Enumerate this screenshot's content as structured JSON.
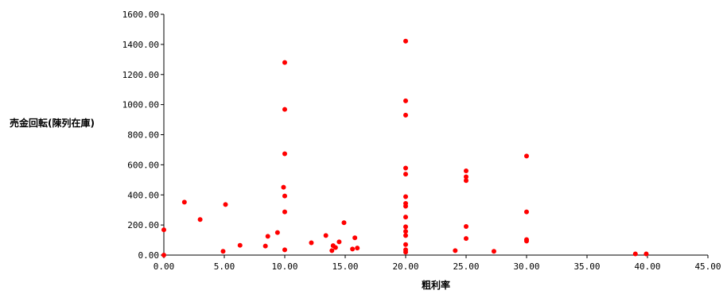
{
  "chart_data": {
    "type": "scatter",
    "title": "",
    "xlabel": "粗利率",
    "ylabel": "売金回転(陳列在庫)",
    "xlim": [
      0,
      45
    ],
    "ylim": [
      0,
      1600
    ],
    "x_ticks": [
      "0.00",
      "5.00",
      "10.00",
      "15.00",
      "20.00",
      "25.00",
      "30.00",
      "35.00",
      "40.00",
      "45.00"
    ],
    "y_ticks": [
      "0.00",
      "200.00",
      "400.00",
      "600.00",
      "800.00",
      "1000.00",
      "1200.00",
      "1400.00",
      "1600.00"
    ],
    "grid": false,
    "legend": "none",
    "marker_color": "#ff0000",
    "points": [
      [
        0,
        168
      ],
      [
        0,
        0
      ],
      [
        1.7,
        352
      ],
      [
        3.0,
        236
      ],
      [
        4.9,
        25
      ],
      [
        5.1,
        336
      ],
      [
        6.3,
        65
      ],
      [
        8.4,
        60
      ],
      [
        8.6,
        125
      ],
      [
        9.4,
        150
      ],
      [
        9.9,
        451
      ],
      [
        10.0,
        1280
      ],
      [
        10.0,
        968
      ],
      [
        10.0,
        673
      ],
      [
        10.0,
        393
      ],
      [
        10.0,
        287
      ],
      [
        10.0,
        35
      ],
      [
        12.2,
        82
      ],
      [
        13.4,
        130
      ],
      [
        13.9,
        30
      ],
      [
        14.0,
        63
      ],
      [
        14.2,
        50
      ],
      [
        14.5,
        88
      ],
      [
        14.9,
        215
      ],
      [
        15.6,
        40
      ],
      [
        15.8,
        115
      ],
      [
        16.0,
        47
      ],
      [
        20.0,
        1422
      ],
      [
        20.0,
        1025
      ],
      [
        20.0,
        930
      ],
      [
        20.0,
        578
      ],
      [
        20.0,
        538
      ],
      [
        20.0,
        388
      ],
      [
        20.0,
        343
      ],
      [
        20.0,
        325
      ],
      [
        20.0,
        253
      ],
      [
        20.0,
        188
      ],
      [
        20.0,
        158
      ],
      [
        20.0,
        130
      ],
      [
        20.0,
        70
      ],
      [
        20.0,
        35
      ],
      [
        20.0,
        20
      ],
      [
        24.1,
        30
      ],
      [
        25.0,
        560
      ],
      [
        25.0,
        520
      ],
      [
        25.0,
        495
      ],
      [
        25.0,
        190
      ],
      [
        25.0,
        110
      ],
      [
        27.3,
        25
      ],
      [
        30.0,
        658
      ],
      [
        30.0,
        287
      ],
      [
        30.0,
        103
      ],
      [
        30.0,
        93
      ],
      [
        39.0,
        8
      ],
      [
        39.9,
        8
      ]
    ]
  }
}
